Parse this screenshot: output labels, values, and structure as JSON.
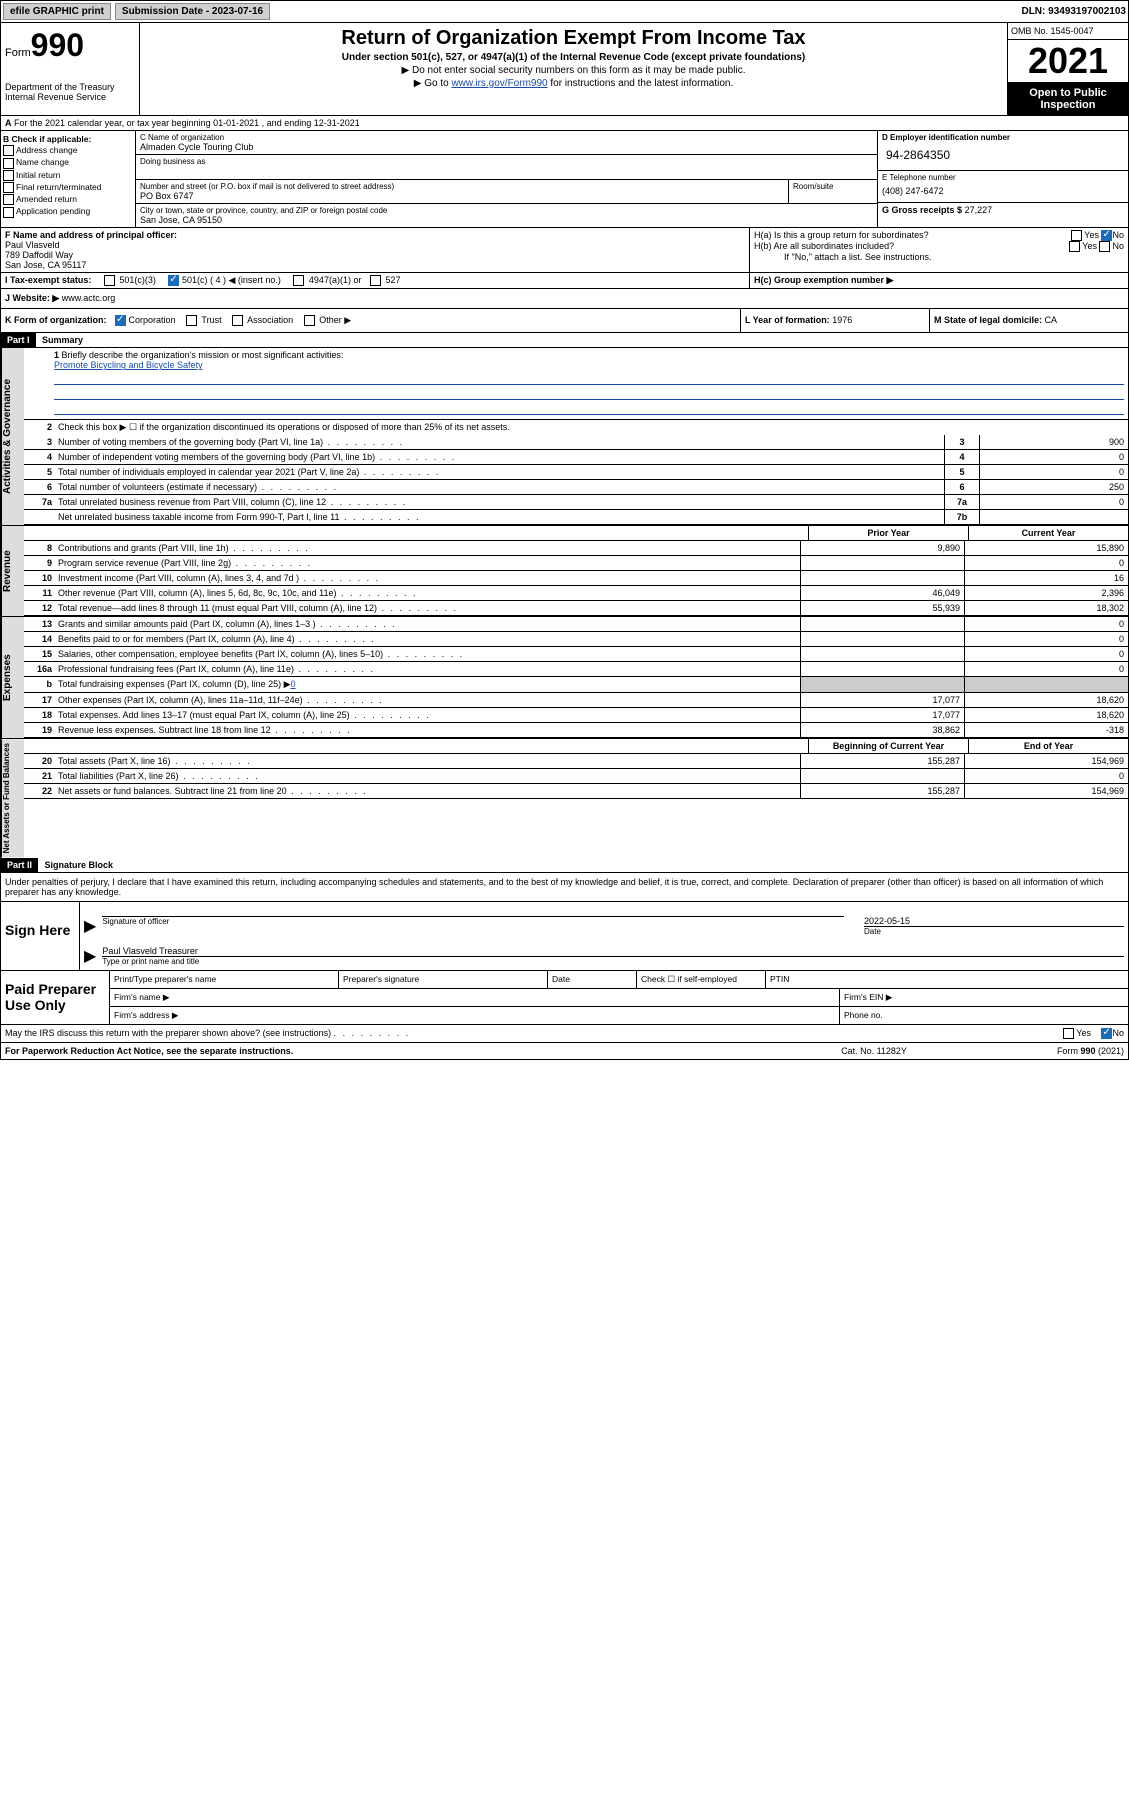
{
  "top": {
    "efile": "efile GRAPHIC print",
    "submission_label": "Submission Date - 2023-07-16",
    "dln": "DLN: 93493197002103"
  },
  "header": {
    "form_prefix": "Form",
    "form_number": "990",
    "title": "Return of Organization Exempt From Income Tax",
    "subtitle": "Under section 501(c), 527, or 4947(a)(1) of the Internal Revenue Code (except private foundations)",
    "note1": "▶ Do not enter social security numbers on this form as it may be made public.",
    "note2_prefix": "▶ Go to ",
    "note2_link": "www.irs.gov/Form990",
    "note2_suffix": " for instructions and the latest information.",
    "dept": "Department of the Treasury\nInternal Revenue Service",
    "omb": "OMB No. 1545-0047",
    "year": "2021",
    "open_public": "Open to Public Inspection"
  },
  "row_a": {
    "label": "A",
    "text": "For the 2021 calendar year, or tax year beginning 01-01-2021    , and ending 12-31-2021"
  },
  "section_b": {
    "label": "B Check if applicable:",
    "opts": [
      "Address change",
      "Name change",
      "Initial return",
      "Final return/terminated",
      "Amended return",
      "Application pending"
    ]
  },
  "section_c": {
    "name_label": "C Name of organization",
    "org_name": "Almaden Cycle Touring Club",
    "dba_label": "Doing business as",
    "addr_label": "Number and street (or P.O. box if mail is not delivered to street address)",
    "addr": "PO Box 6747",
    "room_label": "Room/suite",
    "city_label": "City or town, state or province, country, and ZIP or foreign postal code",
    "city": "San Jose, CA  95150"
  },
  "section_d": {
    "ein_label": "D Employer identification number",
    "ein": "94-2864350",
    "phone_label": "E Telephone number",
    "phone": "(408) 247-6472",
    "gross_label": "G Gross receipts $",
    "gross": "27,227"
  },
  "section_f": {
    "label": "F  Name and address of principal officer:",
    "name": "Paul Vlasveld",
    "addr": "789 Daffodil Way",
    "city": "San Jose, CA  95117"
  },
  "section_h": {
    "ha": "H(a)  Is this a group return for subordinates?",
    "hb": "H(b)  Are all subordinates included?",
    "hb_note": "If \"No,\" attach a list. See instructions.",
    "hc": "H(c)  Group exemption number ▶",
    "yes": "Yes",
    "no": "No"
  },
  "row_i": {
    "label": "I  Tax-exempt status:",
    "opts": [
      "501(c)(3)",
      "501(c) ( 4 ) ◀ (insert no.)",
      "4947(a)(1) or",
      "527"
    ]
  },
  "row_j": {
    "label": "J  Website: ▶",
    "value": "www.actc.org"
  },
  "row_k": {
    "label": "K Form of organization:",
    "opts": [
      "Corporation",
      "Trust",
      "Association",
      "Other ▶"
    ],
    "year_label": "L Year of formation:",
    "year": "1976",
    "state_label": "M State of legal domicile:",
    "state": "CA"
  },
  "part1": {
    "header": "Part I",
    "title": "Summary"
  },
  "summary": {
    "vtab1": "Activities & Governance",
    "line1_label": "1",
    "line1_text": "Briefly describe the organization's mission or most significant activities:",
    "mission": "Promote Bicycling and Bicycle Safety",
    "line2_label": "2",
    "line2_text": "Check this box ▶ ☐  if the organization discontinued its operations or disposed of more than 25% of its net assets.",
    "lines": [
      {
        "n": "3",
        "t": "Number of voting members of the governing body (Part VI, line 1a)",
        "box": "3",
        "v": "900"
      },
      {
        "n": "4",
        "t": "Number of independent voting members of the governing body (Part VI, line 1b)",
        "box": "4",
        "v": "0"
      },
      {
        "n": "5",
        "t": "Total number of individuals employed in calendar year 2021 (Part V, line 2a)",
        "box": "5",
        "v": "0"
      },
      {
        "n": "6",
        "t": "Total number of volunteers (estimate if necessary)",
        "box": "6",
        "v": "250"
      },
      {
        "n": "7a",
        "t": "Total unrelated business revenue from Part VIII, column (C), line 12",
        "box": "7a",
        "v": "0"
      },
      {
        "n": "",
        "t": "Net unrelated business taxable income from Form 990-T, Part I, line 11",
        "box": "7b",
        "v": ""
      }
    ],
    "vtab2": "Revenue",
    "col_prior": "Prior Year",
    "col_curr": "Current Year",
    "rev": [
      {
        "n": "8",
        "t": "Contributions and grants (Part VIII, line 1h)",
        "p": "9,890",
        "c": "15,890"
      },
      {
        "n": "9",
        "t": "Program service revenue (Part VIII, line 2g)",
        "p": "",
        "c": "0"
      },
      {
        "n": "10",
        "t": "Investment income (Part VIII, column (A), lines 3, 4, and 7d )",
        "p": "",
        "c": "16"
      },
      {
        "n": "11",
        "t": "Other revenue (Part VIII, column (A), lines 5, 6d, 8c, 9c, 10c, and 11e)",
        "p": "46,049",
        "c": "2,396"
      },
      {
        "n": "12",
        "t": "Total revenue—add lines 8 through 11 (must equal Part VIII, column (A), line 12)",
        "p": "55,939",
        "c": "18,302"
      }
    ],
    "vtab3": "Expenses",
    "exp": [
      {
        "n": "13",
        "t": "Grants and similar amounts paid (Part IX, column (A), lines 1–3 )",
        "p": "",
        "c": "0"
      },
      {
        "n": "14",
        "t": "Benefits paid to or for members (Part IX, column (A), line 4)",
        "p": "",
        "c": "0"
      },
      {
        "n": "15",
        "t": "Salaries, other compensation, employee benefits (Part IX, column (A), lines 5–10)",
        "p": "",
        "c": "0"
      },
      {
        "n": "16a",
        "t": "Professional fundraising fees (Part IX, column (A), line 11e)",
        "p": "",
        "c": "0"
      }
    ],
    "line16b_n": "b",
    "line16b_t": "Total fundraising expenses (Part IX, column (D), line 25) ▶",
    "line16b_v": "0",
    "exp2": [
      {
        "n": "17",
        "t": "Other expenses (Part IX, column (A), lines 11a–11d, 11f–24e)",
        "p": "17,077",
        "c": "18,620"
      },
      {
        "n": "18",
        "t": "Total expenses. Add lines 13–17 (must equal Part IX, column (A), line 25)",
        "p": "17,077",
        "c": "18,620"
      },
      {
        "n": "19",
        "t": "Revenue less expenses. Subtract line 18 from line 12",
        "p": "38,862",
        "c": "-318"
      }
    ],
    "vtab4": "Net Assets or Fund Balances",
    "col_begin": "Beginning of Current Year",
    "col_end": "End of Year",
    "net": [
      {
        "n": "20",
        "t": "Total assets (Part X, line 16)",
        "p": "155,287",
        "c": "154,969"
      },
      {
        "n": "21",
        "t": "Total liabilities (Part X, line 26)",
        "p": "",
        "c": "0"
      },
      {
        "n": "22",
        "t": "Net assets or fund balances. Subtract line 21 from line 20",
        "p": "155,287",
        "c": "154,969"
      }
    ]
  },
  "part2": {
    "header": "Part II",
    "title": "Signature Block",
    "declaration": "Under penalties of perjury, I declare that I have examined this return, including accompanying schedules and statements, and to the best of my knowledge and belief, it is true, correct, and complete. Declaration of preparer (other than officer) is based on all information of which preparer has any knowledge."
  },
  "sign": {
    "label": "Sign Here",
    "sig_label": "Signature of officer",
    "date_label": "Date",
    "date": "2022-05-15",
    "name": "Paul Vlasveld Treasurer",
    "name_label": "Type or print name and title"
  },
  "paid": {
    "label": "Paid Preparer Use Only",
    "h1": "Print/Type preparer's name",
    "h2": "Preparer's signature",
    "h3": "Date",
    "h4_check": "Check ☐ if self-employed",
    "h5": "PTIN",
    "firm_name": "Firm's name   ▶",
    "firm_ein": "Firm's EIN ▶",
    "firm_addr": "Firm's address ▶",
    "phone": "Phone no."
  },
  "bottom": {
    "discuss": "May the IRS discuss this return with the preparer shown above? (see instructions)",
    "yes": "Yes",
    "no": "No"
  },
  "footer": {
    "left": "For Paperwork Reduction Act Notice, see the separate instructions.",
    "mid": "Cat. No. 11282Y",
    "right_prefix": "Form ",
    "right_form": "990",
    "right_suffix": " (2021)"
  }
}
